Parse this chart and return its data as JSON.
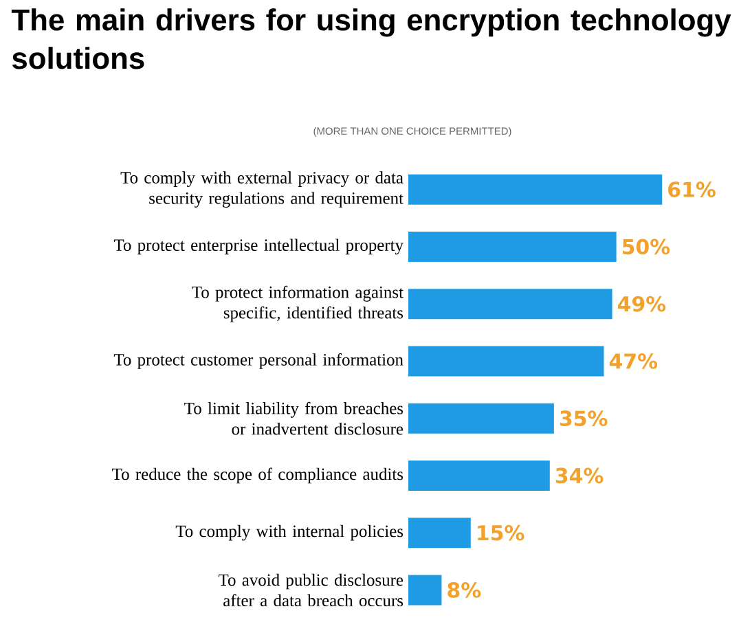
{
  "chart_data": {
    "type": "bar",
    "orientation": "horizontal",
    "title": "The main drivers for using encryption technology solutions",
    "subtitle": "(MORE THAN ONE CHOICE PERMITTED)",
    "categories": [
      "To comply with external privacy or data security regulations and requirement",
      "To protect enterprise intellectual property",
      "To protect information against specific, identified threats",
      "To protect customer personal information",
      "To limit liability from breaches or inadvertent disclosure",
      "To reduce the scope of compliance audits",
      "To comply with internal policies",
      "To avoid public disclosure after a data breach occurs"
    ],
    "values": [
      61,
      50,
      49,
      47,
      35,
      34,
      15,
      8
    ],
    "value_labels": [
      "61%",
      "50%",
      "49%",
      "47%",
      "35%",
      "34%",
      "15%",
      "8%"
    ],
    "color": "#1e9be3"
  }
}
